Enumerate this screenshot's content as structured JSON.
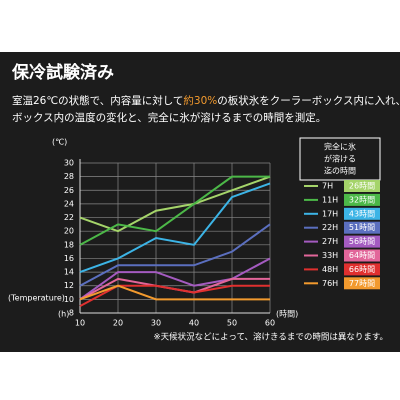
{
  "header": {
    "title": "保冷試験済み",
    "description": [
      "室温26℃の状態で、内容量に対して",
      "約30%",
      "の板状氷をクーラーボックス内に入れ、",
      "ボックス内の温度の変化と、完全に氷が溶けるまでの時間を測定。"
    ]
  },
  "chart_data": {
    "type": "line",
    "y_unit": "(℃)",
    "y_label": "(Temperature)",
    "x_unit": "(h)",
    "x_label": "(時間)",
    "legend_title": [
      "完全に氷",
      "が溶ける",
      "迄の時間"
    ],
    "x": [
      10,
      20,
      30,
      40,
      50,
      60
    ],
    "xlim": [
      10,
      60
    ],
    "xticks": [
      10,
      20,
      30,
      40,
      50,
      60
    ],
    "ylim": [
      8,
      30
    ],
    "yticks": [
      8,
      10,
      12,
      14,
      16,
      18,
      20,
      22,
      24,
      26,
      28,
      30
    ],
    "grid": true,
    "series": [
      {
        "name": "7H",
        "result": "26時間",
        "color": "#a5d46a",
        "values": [
          22,
          20,
          23,
          24,
          26,
          28
        ]
      },
      {
        "name": "11H",
        "result": "32時間",
        "color": "#4cb848",
        "values": [
          18,
          21,
          20,
          24,
          28,
          28
        ]
      },
      {
        "name": "17H",
        "result": "43時間",
        "color": "#3cb4e6",
        "values": [
          14,
          16,
          19,
          18,
          25,
          27
        ]
      },
      {
        "name": "22H",
        "result": "51時間",
        "color": "#5b6fbf",
        "values": [
          12,
          15,
          15,
          15,
          17,
          21
        ]
      },
      {
        "name": "27H",
        "result": "56時間",
        "color": "#a45bc0",
        "values": [
          10,
          14,
          14,
          12,
          13,
          16
        ]
      },
      {
        "name": "33H",
        "result": "64時間",
        "color": "#e2669a",
        "values": [
          10,
          13,
          12,
          11,
          13,
          13
        ]
      },
      {
        "name": "48H",
        "result": "66時間",
        "color": "#e0302f",
        "values": [
          9,
          12,
          12,
          11,
          12,
          12
        ]
      },
      {
        "name": "76H",
        "result": "77時間",
        "color": "#f29a2e",
        "values": [
          10,
          12,
          10,
          10,
          10,
          10
        ]
      }
    ]
  },
  "note": "※天候状況などによって、溶けきるまでの時間は異なります。"
}
